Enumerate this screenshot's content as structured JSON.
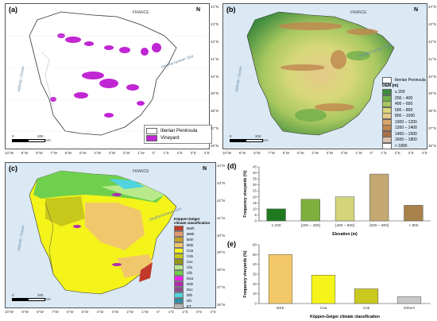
{
  "panels": {
    "a": {
      "label": "(a)",
      "north": "N",
      "scale": {
        "zero": "0",
        "max": "200",
        "unit": "Km"
      },
      "labels": {
        "france": "FRANCE",
        "atlantic": "Atlantic Ocean",
        "med": "Mediterranean Sea"
      },
      "legend": [
        {
          "label": "Iberian Peninsula",
          "color": "#ffffff"
        },
        {
          "label": "Vineyard",
          "color": "#c026d3"
        }
      ],
      "x_ticks": [
        "10°W",
        "8°W",
        "9°W",
        "7°W",
        "6°W",
        "5°W",
        "4°W",
        "3°W",
        "2°W",
        "1°W",
        "0°",
        "1°E",
        "2°E",
        "3°E",
        "4°E"
      ],
      "y_ticks": [
        "44°N",
        "43°N",
        "42°N",
        "41°N",
        "40°N",
        "39°N",
        "38°N",
        "37°N",
        "36°N"
      ]
    },
    "b": {
      "label": "(b)",
      "north": "N",
      "scale": {
        "zero": "0",
        "max": "200",
        "unit": "Km"
      },
      "labels": {
        "france": "FRANCE",
        "atlantic": "Atlantic Ocean",
        "med": "Mediterranean Sea"
      },
      "legend_box": "Iberian Peninsula",
      "legend_title": "DEM (m)",
      "legend": [
        {
          "label": "≤ 200",
          "color": "#3c8a3c"
        },
        {
          "label": "200 – 400",
          "color": "#6fae4a"
        },
        {
          "label": "400 – 600",
          "color": "#a8c860"
        },
        {
          "label": "600 – 800",
          "color": "#d8d87a"
        },
        {
          "label": "800 – 1000",
          "color": "#e6c98a"
        },
        {
          "label": "1000 – 1200",
          "color": "#d6a56a"
        },
        {
          "label": "1200 – 1400",
          "color": "#c0874f"
        },
        {
          "label": "1400 – 1600",
          "color": "#a8704a"
        },
        {
          "label": "1600 – 1800",
          "color": "#d9c2b0"
        },
        {
          "label": "> 1800",
          "color": "#ffffff"
        }
      ],
      "x_ticks": [
        "10°W",
        "9°W",
        "8°W",
        "7°W",
        "6°W",
        "5°W",
        "4°W",
        "3°W",
        "2°W",
        "1°W",
        "0°",
        "1°E",
        "2°E",
        "3°E",
        "4°E"
      ],
      "y_ticks": [
        "44°N",
        "43°N",
        "42°N",
        "41°N",
        "40°N",
        "39°N",
        "38°N",
        "37°N",
        "36°N"
      ]
    },
    "c": {
      "label": "(c)",
      "north": "N",
      "scale": {
        "zero": "0",
        "max": "200",
        "unit": "Km"
      },
      "labels": {
        "france": "FRANCE",
        "atlantic": "Atlantic Ocean",
        "med": "Mediterranean Sea"
      },
      "legend_title": "Köppen-Geiger\nclimate classification",
      "legend": [
        {
          "label": "BWh",
          "color": "#c0392b"
        },
        {
          "label": "BWk",
          "color": "#e59866"
        },
        {
          "label": "BSh",
          "color": "#c9a227"
        },
        {
          "label": "BSk",
          "color": "#f1c76b"
        },
        {
          "label": "Csa",
          "color": "#f4f41a"
        },
        {
          "label": "Csb",
          "color": "#c8c81a"
        },
        {
          "label": "Csc",
          "color": "#96961a"
        },
        {
          "label": "Cfa",
          "color": "#b8ea8b"
        },
        {
          "label": "Cfb",
          "color": "#6fd04d"
        },
        {
          "label": "Dsa",
          "color": "#ee1fee"
        },
        {
          "label": "Dsb",
          "color": "#b02cb0"
        },
        {
          "label": "Dsc",
          "color": "#8a4f8a"
        },
        {
          "label": "Dfb",
          "color": "#4fd4e0"
        },
        {
          "label": "Dfc",
          "color": "#2f8fa8"
        },
        {
          "label": "ET",
          "color": "#b4b4b4"
        }
      ],
      "x_ticks": [
        "10°W",
        "9°W",
        "8°W",
        "7°W",
        "6°W",
        "5°W",
        "4°W",
        "3°W",
        "2°W",
        "1°W",
        "0°",
        "1°E",
        "2°E",
        "3°E",
        "4°E"
      ],
      "y_ticks": [
        "44°N",
        "43°N",
        "42°N",
        "41°N",
        "40°N",
        "39°N",
        "38°N",
        "37°N",
        "36°N"
      ]
    },
    "d": {
      "label": "(d)"
    },
    "e": {
      "label": "(e)"
    }
  },
  "chart_data": [
    {
      "type": "bar",
      "categories": [
        "≤ 200",
        "[200 – 400]",
        "[400 – 600]",
        "[600 – 800]",
        "> 800"
      ],
      "values": [
        10,
        18,
        20,
        39,
        13
      ],
      "colors": [
        "#1e7a1e",
        "#7fb03f",
        "#d4d47a",
        "#c4a872",
        "#a8824a"
      ],
      "xlabel": "Elevation (m)",
      "ylabel": "Frequency vineyards (%)",
      "ylim": [
        0,
        45
      ],
      "yticks": [
        0,
        5,
        10,
        15,
        20,
        25,
        30,
        35,
        40,
        45
      ]
    },
    {
      "type": "bar",
      "categories": [
        "BSK",
        "Csa",
        "Csb",
        "Others"
      ],
      "values": [
        50,
        29,
        15,
        7
      ],
      "colors": [
        "#f3c868",
        "#f4f41a",
        "#c9c91f",
        "#c8c8c8"
      ],
      "xlabel": "Köppen-Geiger climate classification",
      "ylabel": "Frequency vineyards (%)",
      "ylim": [
        0,
        60
      ],
      "yticks": [
        0,
        10,
        20,
        30,
        40,
        50,
        60
      ]
    }
  ]
}
